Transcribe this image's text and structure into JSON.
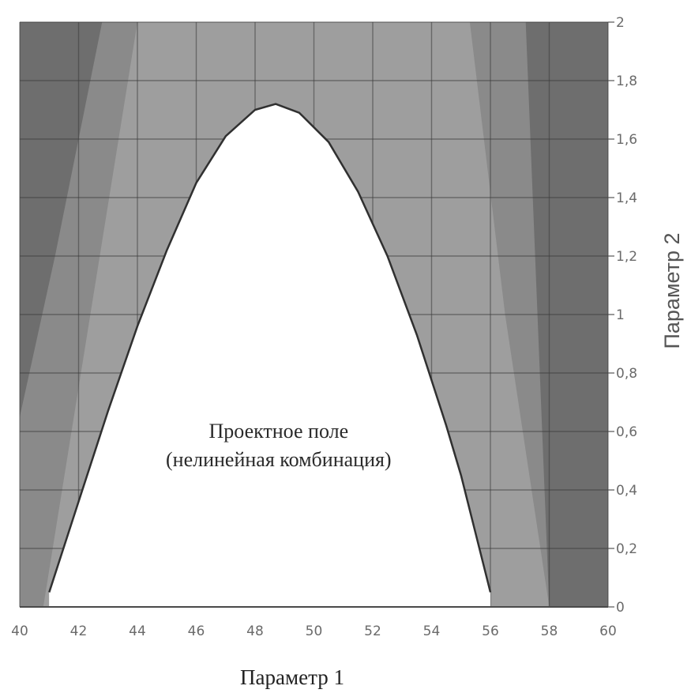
{
  "chart_data": {
    "type": "area",
    "title": "",
    "xlabel": "Параметр 1",
    "ylabel": "Параметр 2",
    "xlim": [
      40,
      60
    ],
    "ylim": [
      0,
      2
    ],
    "x_ticks": [
      "40",
      "42",
      "44",
      "46",
      "48",
      "50",
      "52",
      "54",
      "56",
      "58",
      "60"
    ],
    "y_ticks": [
      "0",
      "0,2",
      "0,4",
      "0,6",
      "0,8",
      "1",
      "1,2",
      "1,4",
      "1,6",
      "1,8",
      "2"
    ],
    "grid": true,
    "regions": [
      {
        "name": "outer-constraint-zone",
        "color": "#6e6e6e",
        "polygon": [
          [
            40,
            0
          ],
          [
            40,
            2
          ],
          [
            60,
            2
          ],
          [
            60,
            0
          ]
        ]
      },
      {
        "name": "middle-constraint-zone",
        "color": "#8a8a8a",
        "polygon": [
          [
            40,
            0
          ],
          [
            40,
            0.65
          ],
          [
            41.2,
            1.2
          ],
          [
            42.8,
            2
          ],
          [
            57.2,
            2
          ],
          [
            58,
            0
          ]
        ]
      },
      {
        "name": "inner-constraint-zone",
        "color": "#9e9e9e",
        "polygon": [
          [
            40.8,
            0
          ],
          [
            44,
            2
          ],
          [
            55.3,
            2
          ],
          [
            56.5,
            1.0
          ],
          [
            58,
            0
          ]
        ]
      },
      {
        "name": "feasible-region",
        "color": "#ffffff",
        "curve": {
          "x": [
            41,
            42,
            43,
            44,
            45,
            46,
            47,
            48,
            48.7,
            49.5,
            50.5,
            51.5,
            52.5,
            53.5,
            54.5,
            55,
            55.5,
            56
          ],
          "y": [
            0.05,
            0.36,
            0.67,
            0.96,
            1.22,
            1.45,
            1.61,
            1.7,
            1.72,
            1.69,
            1.59,
            1.42,
            1.2,
            0.93,
            0.62,
            0.45,
            0.25,
            0.05
          ]
        }
      }
    ],
    "annotation": {
      "line1": "Проектное поле",
      "line2": "(нелинейная комбинация)",
      "x": 48.8,
      "y": 0.33
    },
    "colors": {
      "boundary": "#303030",
      "grid": "#3c3c3c"
    }
  }
}
